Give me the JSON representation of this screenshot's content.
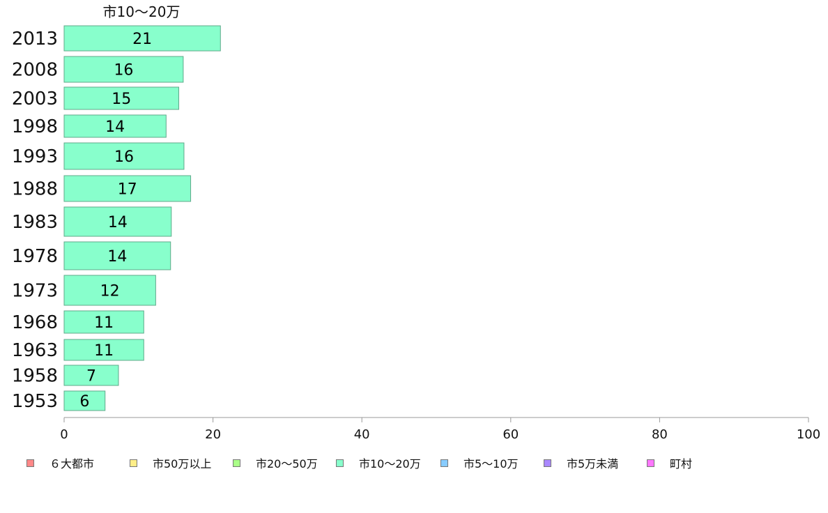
{
  "chart_data": {
    "type": "bar",
    "orientation": "horizontal",
    "title": "市10〜20万",
    "categories": [
      "2013",
      "2008",
      "2003",
      "1998",
      "1993",
      "1988",
      "1983",
      "1978",
      "1973",
      "1968",
      "1963",
      "1958",
      "1953"
    ],
    "values": [
      21,
      16,
      15.4,
      13.7,
      16.1,
      17,
      14.4,
      14.3,
      12.3,
      10.7,
      10.7,
      7.3,
      5.5
    ],
    "data_labels": [
      "21",
      "16",
      "15",
      "14",
      "16",
      "17",
      "14",
      "14",
      "12",
      "11",
      "11",
      "7",
      "6"
    ],
    "xlim": [
      0,
      100
    ],
    "xticks": [
      "0",
      "20",
      "40",
      "60",
      "80",
      "100"
    ],
    "bar_color": "#88ffcc",
    "grid": false,
    "legend_position": "bottom",
    "legend": [
      {
        "label": "６大都市",
        "color": "#ff8888"
      },
      {
        "label": "市50万以上",
        "color": "#ffee88"
      },
      {
        "label": "市20〜50万",
        "color": "#aaff88"
      },
      {
        "label": "市10〜20万",
        "color": "#88ffcc"
      },
      {
        "label": "市5〜10万",
        "color": "#88ccff"
      },
      {
        "label": "市5万未満",
        "color": "#aa88ff"
      },
      {
        "label": "町村",
        "color": "#ff77ff"
      }
    ]
  }
}
